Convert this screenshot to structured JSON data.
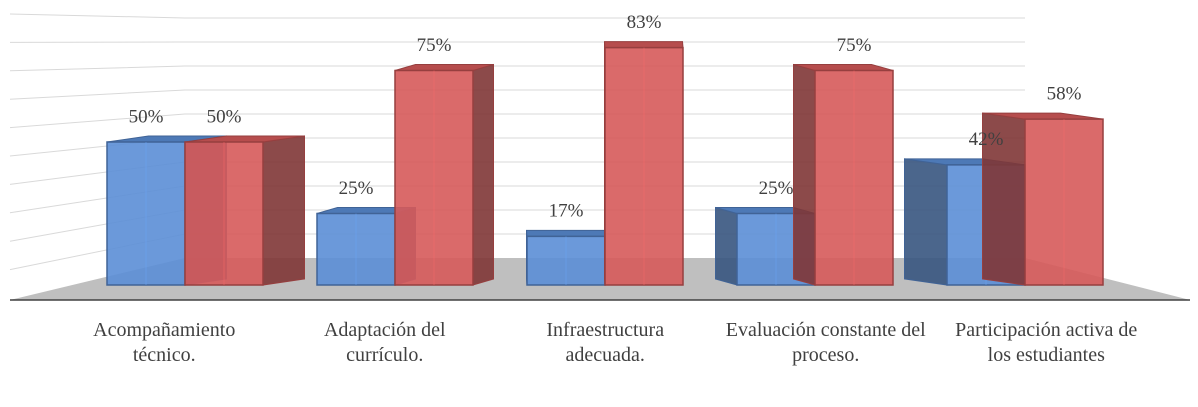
{
  "chart_data": {
    "type": "bar3d",
    "categories": [
      "Acompañamiento técnico.",
      "Adaptación del currículo.",
      "Infraestructura adecuada.",
      "Evaluación constante del proceso.",
      "Participación activa de los estudiantes"
    ],
    "series": [
      {
        "color": "#5b8ed6",
        "values": [
          50,
          25,
          17,
          25,
          42
        ],
        "value_labels": [
          "50%",
          "25%",
          "17%",
          "25%",
          "42%"
        ]
      },
      {
        "color": "#d65a5a",
        "values": [
          50,
          75,
          83,
          75,
          58
        ],
        "value_labels": [
          "50%",
          "75%",
          "83%",
          "75%",
          "58%"
        ]
      }
    ],
    "ylim": [
      0,
      100
    ],
    "yticks": [
      0,
      10,
      20,
      30,
      40,
      50,
      60,
      70,
      80,
      90,
      100
    ],
    "grid": true
  }
}
